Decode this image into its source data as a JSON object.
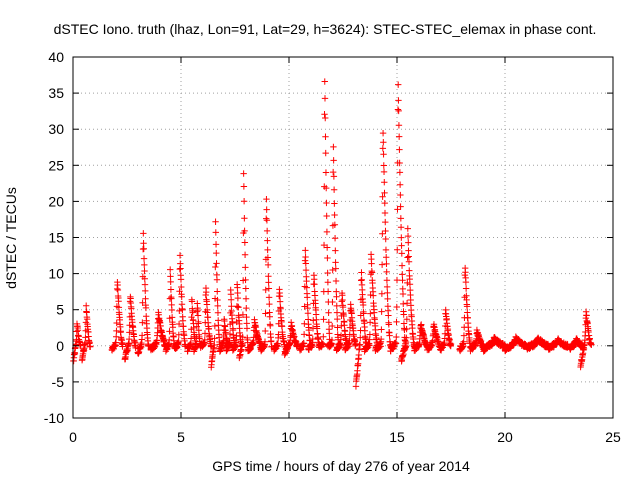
{
  "chart_data": {
    "type": "scatter",
    "title": "dSTEC Iono. truth (lhaz, Lon=91, Lat=29, h=3624): STEC-STEC_elemax in phase cont.",
    "xlabel": "GPS time / hours of day 276 of year 2014",
    "ylabel": "dSTEC  / TECUs",
    "xlim": [
      0,
      25
    ],
    "ylim": [
      -10,
      40
    ],
    "xticks": [
      0,
      5,
      10,
      15,
      20,
      25
    ],
    "yticks": [
      -10,
      -5,
      0,
      5,
      10,
      15,
      20,
      25,
      30,
      35,
      40
    ],
    "grid": true,
    "marker": "+",
    "color": "#ff0000",
    "arcs": [
      {
        "start": 0.02,
        "end": 0.35,
        "min": -2.2,
        "peak": 3.2
      },
      {
        "start": 0.42,
        "end": 0.8,
        "min": -1.8,
        "peak": 5.5
      },
      {
        "start": 1.8,
        "end": 2.3,
        "min": -0.5,
        "peak": 9.2
      },
      {
        "start": 2.4,
        "end": 2.9,
        "min": -1.8,
        "peak": 7.2
      },
      {
        "start": 3.0,
        "end": 3.5,
        "min": -1.0,
        "peak": 16.0
      },
      {
        "start": 3.6,
        "end": 4.3,
        "min": -0.5,
        "peak": 4.5
      },
      {
        "start": 4.3,
        "end": 4.7,
        "min": -0.5,
        "peak": 10.5
      },
      {
        "start": 4.7,
        "end": 5.2,
        "min": -0.3,
        "peak": 12.8
      },
      {
        "start": 5.3,
        "end": 5.7,
        "min": -0.5,
        "peak": 6.5
      },
      {
        "start": 5.6,
        "end": 5.9,
        "min": -0.5,
        "peak": 6.5
      },
      {
        "start": 5.9,
        "end": 6.4,
        "min": 0.0,
        "peak": 8.0
      },
      {
        "start": 6.4,
        "end": 6.8,
        "min": -2.8,
        "peak": 17.0
      },
      {
        "start": 6.8,
        "end": 7.2,
        "min": -0.5,
        "peak": 3.5
      },
      {
        "start": 7.1,
        "end": 7.5,
        "min": -0.5,
        "peak": 7.5
      },
      {
        "start": 7.4,
        "end": 7.8,
        "min": -0.5,
        "peak": 8.5
      },
      {
        "start": 7.7,
        "end": 8.1,
        "min": -1.8,
        "peak": 24.0
      },
      {
        "start": 8.1,
        "end": 8.7,
        "min": -0.8,
        "peak": 3.5
      },
      {
        "start": 8.7,
        "end": 9.2,
        "min": -0.5,
        "peak": 21.0
      },
      {
        "start": 9.3,
        "end": 9.8,
        "min": -0.5,
        "peak": 8.0
      },
      {
        "start": 9.8,
        "end": 10.4,
        "min": -1.0,
        "peak": 3.0
      },
      {
        "start": 10.5,
        "end": 11.0,
        "min": -0.5,
        "peak": 14.0
      },
      {
        "start": 10.9,
        "end": 11.4,
        "min": -0.5,
        "peak": 10.0
      },
      {
        "start": 11.4,
        "end": 11.9,
        "min": 0.0,
        "peak": 38.0
      },
      {
        "start": 11.8,
        "end": 12.3,
        "min": 0.0,
        "peak": 28.5
      },
      {
        "start": 12.2,
        "end": 12.7,
        "min": -0.5,
        "peak": 7.5
      },
      {
        "start": 12.6,
        "end": 13.1,
        "min": -0.5,
        "peak": 6.0
      },
      {
        "start": 13.1,
        "end": 13.6,
        "min": -5.5,
        "peak": 10.5
      },
      {
        "start": 13.5,
        "end": 14.1,
        "min": -0.5,
        "peak": 12.8
      },
      {
        "start": 14.0,
        "end": 14.7,
        "min": -0.5,
        "peak": 30.5
      },
      {
        "start": 14.7,
        "end": 15.4,
        "min": -0.5,
        "peak": 37.0
      },
      {
        "start": 15.2,
        "end": 15.8,
        "min": -2.0,
        "peak": 16.0
      },
      {
        "start": 15.8,
        "end": 16.4,
        "min": -0.5,
        "peak": 3.0
      },
      {
        "start": 16.4,
        "end": 17.0,
        "min": -0.5,
        "peak": 3.0
      },
      {
        "start": 17.0,
        "end": 17.5,
        "min": -0.5,
        "peak": 5.0
      },
      {
        "start": 17.9,
        "end": 18.4,
        "min": -0.5,
        "peak": 11.2
      },
      {
        "start": 18.4,
        "end": 19.0,
        "min": -0.5,
        "peak": 2.0
      },
      {
        "start": 19.0,
        "end": 20.0,
        "min": -0.5,
        "peak": 1.0
      },
      {
        "start": 20.0,
        "end": 21.0,
        "min": -0.5,
        "peak": 1.0
      },
      {
        "start": 21.0,
        "end": 22.0,
        "min": -0.3,
        "peak": 1.0
      },
      {
        "start": 22.0,
        "end": 22.9,
        "min": -0.3,
        "peak": 0.8
      },
      {
        "start": 23.0,
        "end": 23.6,
        "min": -0.3,
        "peak": 0.8
      },
      {
        "start": 23.5,
        "end": 24.0,
        "min": -2.8,
        "peak": 4.8
      }
    ]
  }
}
